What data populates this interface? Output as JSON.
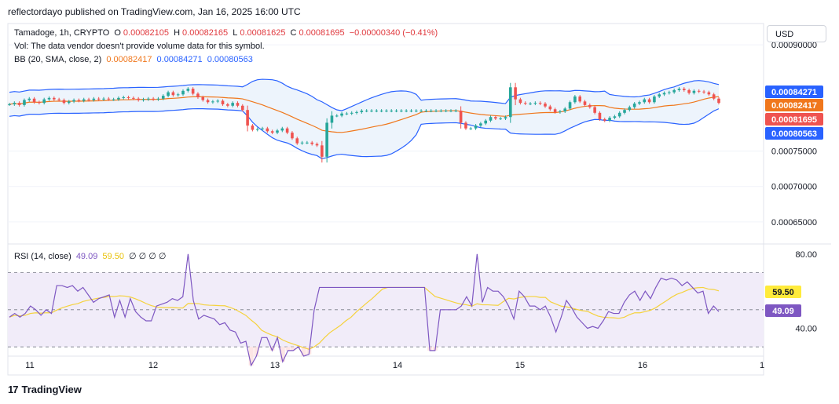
{
  "header": {
    "published": "reflectordayo published on TradingView.com, Jan 16, 2025 16:00 UTC"
  },
  "legend": {
    "symbol": "Tamadoge, 1h, CRYPTO",
    "o_label": "O",
    "o_value": "0.00082105",
    "h_label": "H",
    "h_value": "0.00082165",
    "l_label": "L",
    "l_value": "0.00081625",
    "c_label": "C",
    "c_value": "0.00081695",
    "change": "−0.00000340 (−0.41%)",
    "vol": "Vol: The data vendor doesn't provide volume data for this symbol.",
    "bb_label": "BB (20, SMA, close, 2)",
    "bb_basis": "0.00082417",
    "bb_upper": "0.00084271",
    "bb_lower": "0.00080563",
    "rsi_label": "RSI (14, close)",
    "rsi_value": "49.09",
    "rsi_ma": "59.50",
    "rsi_extra": "∅ ∅ ∅ ∅"
  },
  "currency_button": "USD",
  "brand": {
    "logo": "17",
    "name": "TradingView"
  },
  "colors": {
    "up": "#26a69a",
    "down": "#ef5350",
    "basis": "#f0771c",
    "band": "#2962ff",
    "band_fill": "#eaf2fb",
    "rsi": "#7e57c2",
    "rsi_ma": "#f5d23c",
    "rsi_zone": "#f1ecf9"
  },
  "chart_data": [
    {
      "type": "candlestick",
      "x_ticks": [
        "11",
        "12",
        "13",
        "14",
        "15",
        "16",
        "1"
      ],
      "y_ticks": [
        "0.00090000",
        "0.00075000",
        "0.00070000",
        "0.00065000"
      ],
      "price_labels": {
        "upper": "0.00084271",
        "basis": "0.00082417",
        "close": "0.00081695",
        "lower": "0.00080563"
      },
      "ylim": [
        0.00062,
        0.00093
      ],
      "xlim_days": [
        10.8,
        17.0
      ],
      "candles_close": [
        0.000816,
        0.000818,
        0.000815,
        0.000822,
        0.000824,
        0.000819,
        0.000818,
        0.000823,
        0.000825,
        0.000823,
        0.000822,
        0.000818,
        0.00082,
        0.000822,
        0.000821,
        0.000823,
        0.000822,
        0.000824,
        0.000823,
        0.000824,
        0.000823,
        0.000823,
        0.000825,
        0.000826,
        0.000825,
        0.000824,
        0.000822,
        0.000823,
        0.000824,
        0.000823,
        0.000824,
        0.000828,
        0.000833,
        0.000829,
        0.00083,
        0.000835,
        0.000838,
        0.000831,
        0.000826,
        0.000822,
        0.000819,
        0.00082,
        0.000821,
        0.000816,
        0.000814,
        0.000818,
        0.000814,
        0.000808,
        0.000786,
        0.00078,
        0.000781,
        0.000782,
        0.000778,
        0.000776,
        0.000779,
        0.000782,
        0.000776,
        0.000768,
        0.000761,
        0.000762,
        0.000762,
        0.00076,
        0.000758,
        0.000742,
        0.00079,
        0.0008,
        0.0008,
        0.000803,
        0.000803,
        0.000804,
        0.000805,
        0.000807,
        0.000807,
        0.000807,
        0.000807,
        0.000807,
        0.000807,
        0.000807,
        0.000807,
        0.000807,
        0.000807,
        0.000807,
        0.000807,
        0.000807,
        0.000807,
        0.000807,
        0.000807,
        0.000807,
        0.000807,
        0.000807,
        0.000807,
        0.00079,
        0.000782,
        0.000782,
        0.000786,
        0.000789,
        0.000793,
        0.000798,
        0.000796,
        0.000796,
        0.000798,
        0.00084,
        0.000823,
        0.000818,
        0.000817,
        0.000817,
        0.000818,
        0.000817,
        0.000813,
        0.000809,
        0.000805,
        0.000806,
        0.00081,
        0.000819,
        0.000827,
        0.00082,
        0.000815,
        0.000812,
        0.000804,
        0.000795,
        0.000793,
        0.000797,
        0.000799,
        0.000804,
        0.000808,
        0.000812,
        0.000817,
        0.000819,
        0.000823,
        0.000819,
        0.000827,
        0.00083,
        0.000832,
        0.000833,
        0.000836,
        0.000838,
        0.000836,
        0.000832,
        0.000835,
        0.000834,
        0.000833,
        0.00083,
        0.000824,
        0.000818
      ]
    },
    {
      "type": "line",
      "name": "RSI (14, close)",
      "y_ticks": [
        "80.00",
        "40.00"
      ],
      "value_labels": {
        "ma": "59.50",
        "rsi": "49.09"
      },
      "ylim": [
        25,
        85
      ],
      "bands": [
        70,
        50,
        30
      ],
      "rsi": [
        46,
        48,
        46,
        48,
        52,
        50,
        47,
        50,
        48,
        63,
        63,
        62,
        63,
        60,
        62,
        58,
        54,
        56,
        57,
        58,
        46,
        55,
        46,
        56,
        49,
        46,
        44,
        44,
        52,
        53,
        54,
        56,
        55,
        57,
        80,
        55,
        45,
        47,
        46,
        45,
        42,
        43,
        39,
        38,
        32,
        33,
        20,
        25,
        35,
        35,
        28,
        35,
        22,
        28,
        28,
        30,
        25,
        26,
        50,
        62,
        62,
        62,
        62,
        62,
        62,
        62,
        62,
        62,
        62,
        62,
        62,
        62,
        62,
        62,
        62,
        62,
        62,
        62,
        62,
        62,
        28,
        28,
        50,
        50,
        50,
        50,
        52,
        57,
        52,
        80,
        54,
        62,
        60,
        60,
        57,
        52,
        45,
        60,
        57,
        52,
        52,
        50,
        52,
        46,
        38,
        46,
        55,
        51,
        46,
        43,
        40,
        41,
        40,
        44,
        49,
        48,
        48,
        54,
        58,
        60,
        55,
        60,
        56,
        62,
        67,
        66,
        67,
        66,
        63,
        65,
        62,
        59,
        60,
        48,
        52,
        49
      ]
    }
  ]
}
